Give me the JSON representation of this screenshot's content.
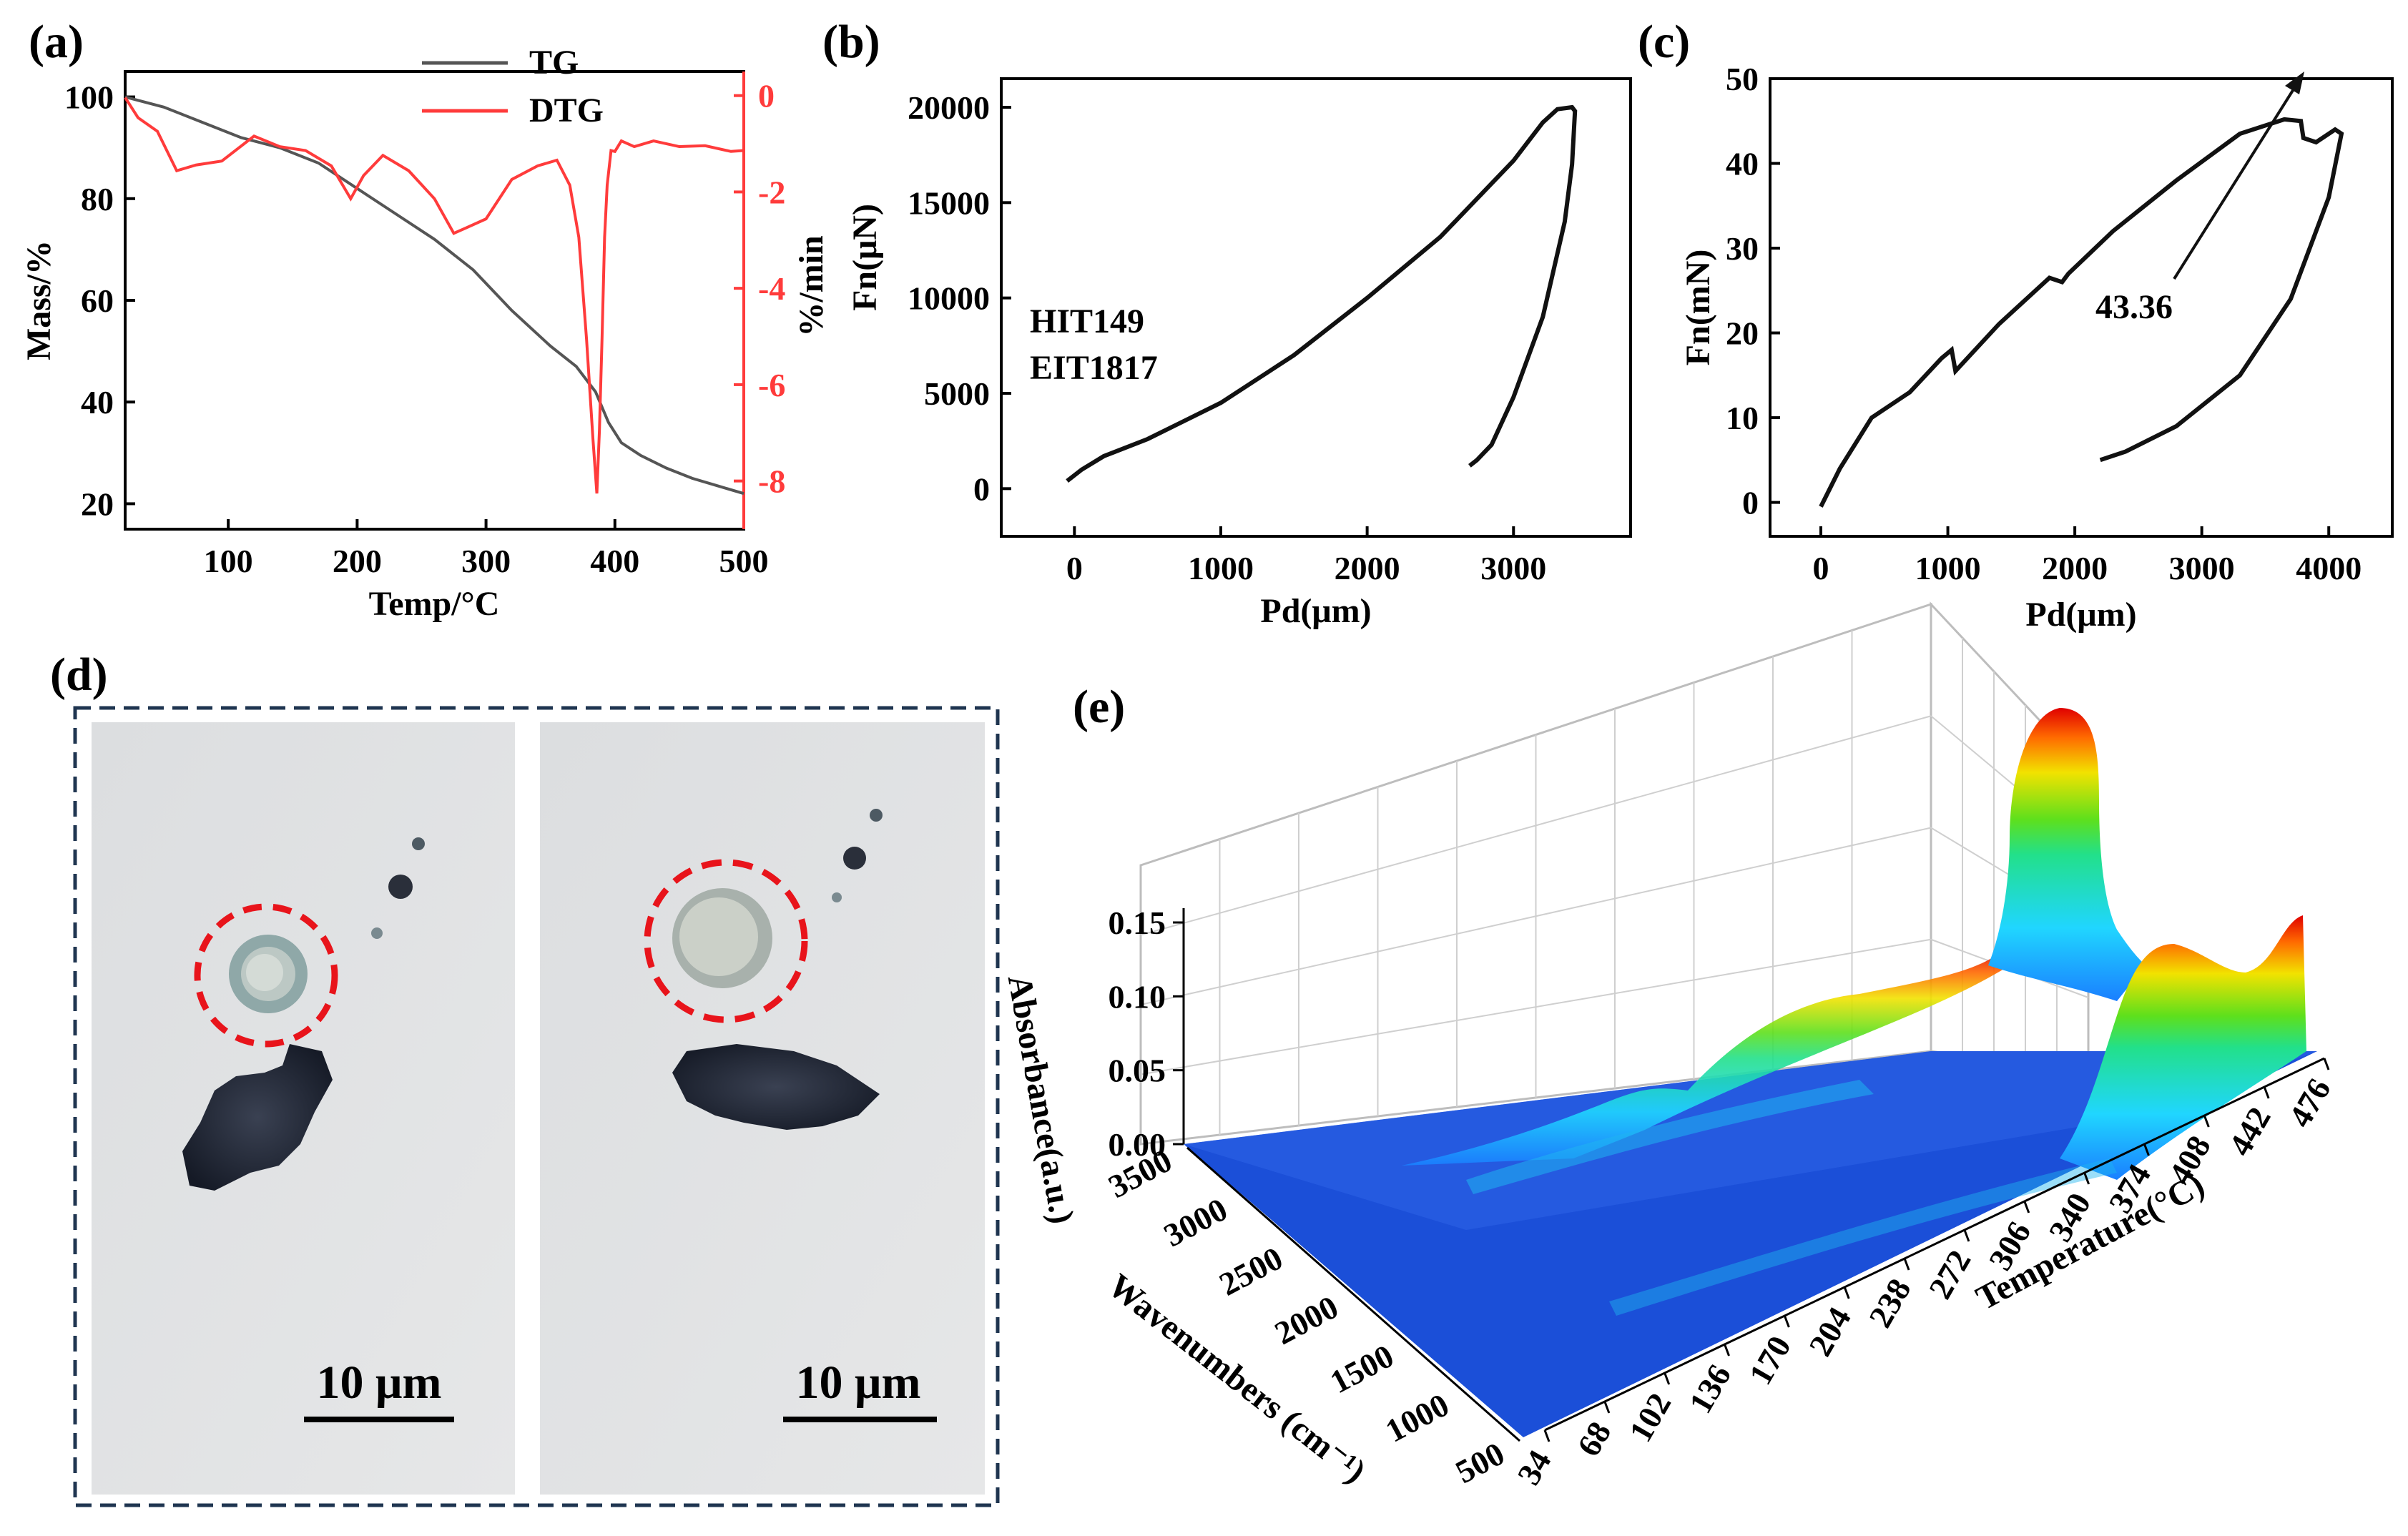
{
  "panels": {
    "a": "(a)",
    "b": "(b)",
    "c": "(c)",
    "d": "(d)",
    "e": "(e)"
  },
  "chart_data": [
    {
      "id": "a",
      "type": "line",
      "title": "",
      "xlabel": "Temp/°C",
      "ylabel": "Mass/%",
      "y2label": "%/min",
      "xlim": [
        20,
        500
      ],
      "ylim": [
        15,
        105
      ],
      "y2lim": [
        -9,
        0.5
      ],
      "xticks": [
        100,
        200,
        300,
        400,
        500
      ],
      "yticks": [
        20,
        40,
        60,
        80,
        100
      ],
      "y2ticks": [
        0,
        -2,
        -4,
        -6,
        -8
      ],
      "legend": [
        "TG",
        "DTG"
      ],
      "legend_position": "top-center",
      "colors": {
        "TG": "#555555",
        "DTG": "#ff3b3b"
      },
      "series": [
        {
          "name": "TG",
          "axis": "left",
          "x": [
            20,
            50,
            80,
            110,
            140,
            170,
            200,
            230,
            260,
            290,
            320,
            350,
            370,
            385,
            395,
            405,
            420,
            440,
            460,
            480,
            500
          ],
          "y": [
            100,
            98,
            95,
            92,
            90,
            87,
            82,
            77,
            72,
            66,
            58,
            51,
            47,
            42,
            36,
            32,
            29.5,
            27,
            25,
            23.5,
            22
          ]
        },
        {
          "name": "DTG",
          "axis": "right",
          "x": [
            20,
            30,
            45,
            60,
            75,
            95,
            120,
            140,
            160,
            180,
            195,
            205,
            220,
            240,
            260,
            275,
            285,
            300,
            320,
            340,
            355,
            365,
            372,
            378,
            383,
            386,
            388,
            390,
            392,
            394,
            397,
            400,
            405,
            415,
            430,
            450,
            470,
            490,
            500
          ],
          "y": [
            -0.1,
            -0.4,
            -0.8,
            -1.5,
            -1.5,
            -1.3,
            -0.9,
            -1.0,
            -1.2,
            -1.4,
            -2.2,
            -1.6,
            -1.3,
            -1.5,
            -2.2,
            -2.8,
            -2.8,
            -2.5,
            -1.8,
            -1.4,
            -1.4,
            -1.8,
            -3.0,
            -5.0,
            -7.2,
            -8.2,
            -7.0,
            -5.0,
            -3.0,
            -1.8,
            -1.2,
            -1.1,
            -1.0,
            -1.0,
            -1.0,
            -1.0,
            -1.1,
            -1.1,
            -1.2
          ]
        }
      ]
    },
    {
      "id": "b",
      "type": "line",
      "title": "",
      "xlabel": "Pd(μm)",
      "ylabel": "Fn(μN)",
      "xlim": [
        -500,
        3800
      ],
      "ylim": [
        -2500,
        21500
      ],
      "xticks": [
        0,
        1000,
        2000,
        3000
      ],
      "yticks": [
        0,
        5000,
        10000,
        15000,
        20000
      ],
      "annotations": [
        "HIT149",
        "EIT1817"
      ],
      "series": [
        {
          "name": "load-unload",
          "x": [
            -50,
            50,
            200,
            500,
            1000,
            1500,
            2000,
            2500,
            3000,
            3200,
            3300,
            3400,
            3420,
            3400,
            3350,
            3200,
            3000,
            2850,
            2750,
            2700
          ],
          "y": [
            400,
            1000,
            1700,
            2600,
            4500,
            7000,
            10000,
            13200,
            17200,
            19200,
            19900,
            20000,
            19800,
            17000,
            14000,
            9000,
            4800,
            2300,
            1500,
            1200
          ]
        }
      ]
    },
    {
      "id": "c",
      "type": "line",
      "title": "",
      "xlabel": "Pd(μm)",
      "ylabel": "Fn(mN)",
      "xlim": [
        -400,
        4500
      ],
      "ylim": [
        -4,
        50
      ],
      "xticks": [
        0,
        1000,
        2000,
        3000,
        4000
      ],
      "yticks": [
        0,
        10,
        20,
        30,
        40,
        50
      ],
      "annotations": [
        "43.36"
      ],
      "series": [
        {
          "name": "load-unload",
          "x": [
            0,
            150,
            400,
            700,
            950,
            1030,
            1060,
            1400,
            1800,
            1900,
            1950,
            2300,
            2800,
            3300,
            3650,
            3780,
            3800,
            3900,
            4050,
            4100,
            4000,
            3700,
            3300,
            2800,
            2400,
            2200
          ],
          "y": [
            -0.5,
            4,
            10,
            13,
            17,
            18,
            15.5,
            21,
            26.5,
            26,
            27,
            32,
            38,
            43.5,
            45.2,
            45,
            43,
            42.5,
            44,
            43.5,
            36,
            24,
            15,
            9,
            6,
            5
          ]
        }
      ]
    },
    {
      "id": "e",
      "type": "area",
      "title": "",
      "xlabel": "Wavenumbers (cm⁻¹)",
      "ylabel": "Absorbance(a.u.)",
      "zlabel": "Temperature(°C)",
      "ylim": [
        0,
        0.15
      ],
      "wavenumber_ticks": [
        3500,
        3000,
        2500,
        2000,
        1500,
        1000,
        500
      ],
      "absorbance_ticks": [
        "0.00",
        "0.05",
        "0.10",
        "0.15"
      ],
      "temperature_ticks": [
        34,
        68,
        102,
        136,
        170,
        204,
        238,
        272,
        306,
        340,
        374,
        408,
        442,
        476
      ],
      "peaks": [
        {
          "wavenumber": 2350,
          "temperature": 400,
          "absorbance": 0.17
        },
        {
          "wavenumber": 2350,
          "temperature": 300,
          "absorbance": 0.08
        },
        {
          "wavenumber": 2350,
          "temperature": 220,
          "absorbance": 0.04
        },
        {
          "wavenumber": 700,
          "temperature": 400,
          "absorbance": 0.09
        },
        {
          "wavenumber": 700,
          "temperature": 476,
          "absorbance": 0.1
        }
      ]
    }
  ],
  "micrograph": {
    "scale_label_left": "10 μm",
    "scale_label_right": "10 μm",
    "colors": {
      "frame": "#1f3550",
      "circle": "#e8141b"
    }
  }
}
